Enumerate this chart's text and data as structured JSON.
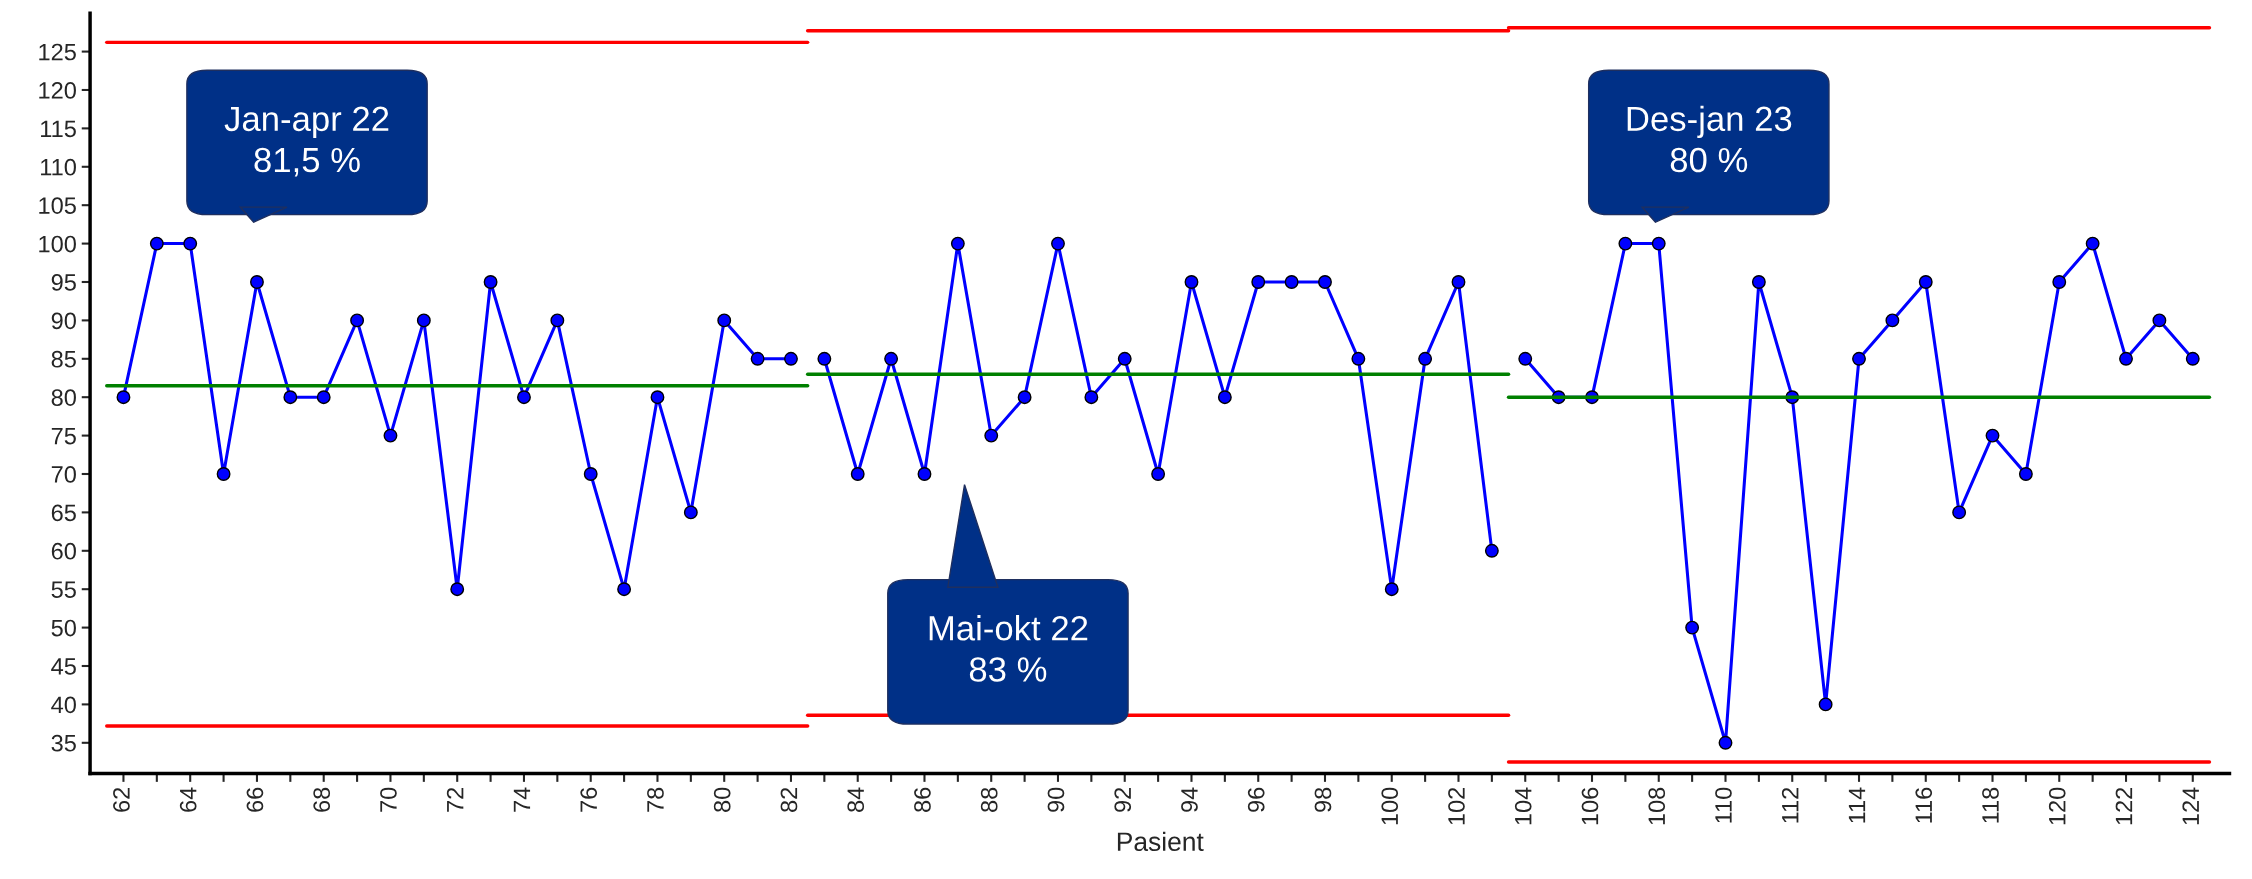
{
  "chart_data": {
    "type": "line",
    "xlabel": "Pasient",
    "marker": "circle",
    "line_style": "solid",
    "grid": false,
    "legend": false,
    "xlim": [
      61,
      125.1
    ],
    "ylim": [
      31,
      130
    ],
    "xticks": [
      62,
      {
        "value": 63,
        "label": null
      },
      64,
      {
        "value": 65,
        "label": null
      },
      66,
      {
        "value": 67,
        "label": null
      },
      68,
      {
        "value": 69,
        "label": null
      },
      70,
      {
        "value": 71,
        "label": null
      },
      72,
      {
        "value": 73,
        "label": null
      },
      74,
      {
        "value": 75,
        "label": null
      },
      76,
      {
        "value": 77,
        "label": null
      },
      78,
      {
        "value": 79,
        "label": null
      },
      80,
      {
        "value": 81,
        "label": null
      },
      82,
      {
        "value": 83,
        "label": null
      },
      84,
      {
        "value": 85,
        "label": null
      },
      86,
      {
        "value": 87,
        "label": null
      },
      88,
      {
        "value": 89,
        "label": null
      },
      90,
      {
        "value": 91,
        "label": null
      },
      92,
      {
        "value": 93,
        "label": null
      },
      94,
      {
        "value": 95,
        "label": null
      },
      96,
      {
        "value": 97,
        "label": null
      },
      98,
      {
        "value": 99,
        "label": null
      },
      100,
      {
        "value": 101,
        "label": null
      },
      102,
      {
        "value": 103,
        "label": null
      },
      104,
      {
        "value": 105,
        "label": null
      },
      106,
      {
        "value": 107,
        "label": null
      },
      108,
      {
        "value": 109,
        "label": null
      },
      110,
      {
        "value": 111,
        "label": null
      },
      112,
      {
        "value": 113,
        "label": null
      },
      114,
      {
        "value": 115,
        "label": null
      },
      116,
      {
        "value": 117,
        "label": null
      },
      118,
      {
        "value": 119,
        "label": null
      },
      120,
      {
        "value": 121,
        "label": null
      },
      122,
      {
        "value": 123,
        "label": null
      },
      124
    ],
    "yticks": [
      35,
      40,
      45,
      50,
      55,
      60,
      65,
      70,
      75,
      80,
      85,
      90,
      95,
      100,
      105,
      110,
      115,
      120,
      125
    ],
    "series": [
      {
        "color": "#0000ff",
        "x": [
          62,
          63,
          64,
          65,
          66,
          67,
          68,
          69,
          70,
          71,
          72,
          73,
          74,
          75,
          76,
          77,
          78,
          79,
          80,
          81,
          82
        ],
        "values": [
          80,
          100,
          100,
          70,
          95,
          80,
          80,
          90,
          75,
          90,
          55,
          95,
          80,
          90,
          70,
          55,
          80,
          65,
          90,
          85,
          85
        ]
      },
      {
        "color": "#0000ff",
        "x": [
          83,
          84,
          85,
          86,
          87,
          88,
          89,
          90,
          91,
          92,
          93,
          94,
          95,
          96,
          97,
          98,
          99,
          100,
          101,
          102,
          103
        ],
        "values": [
          85,
          70,
          85,
          70,
          100,
          75,
          80,
          100,
          80,
          85,
          70,
          95,
          80,
          95,
          95,
          95,
          85,
          55,
          85,
          95,
          60
        ]
      },
      {
        "color": "#0000ff",
        "x": [
          104,
          105,
          106,
          107,
          108,
          109,
          110,
          111,
          112,
          113,
          114,
          115,
          116,
          117,
          118,
          119,
          120,
          121,
          122,
          123,
          124
        ],
        "values": [
          85,
          80,
          80,
          100,
          100,
          50,
          35,
          95,
          80,
          40,
          85,
          90,
          95,
          65,
          75,
          70,
          95,
          100,
          85,
          90,
          85
        ]
      },
      {
        "type": "line",
        "color": "#ff0000",
        "marker": "none",
        "x": [
          61.5,
          82.5
        ],
        "values": [
          126.2,
          126.2
        ]
      },
      {
        "type": "line",
        "color": "#008000",
        "marker": "none",
        "x": [
          61.5,
          82.5
        ],
        "values": [
          81.5,
          81.5
        ]
      },
      {
        "type": "line",
        "color": "#ff0000",
        "marker": "none",
        "x": [
          61.5,
          82.5
        ],
        "values": [
          37.2,
          37.2
        ]
      },
      {
        "type": "line",
        "color": "#ff0000",
        "marker": "none",
        "x": [
          82.5,
          103.5
        ],
        "values": [
          127.7,
          127.7
        ]
      },
      {
        "type": "line",
        "color": "#008000",
        "marker": "none",
        "x": [
          82.5,
          103.5
        ],
        "values": [
          83,
          83
        ]
      },
      {
        "type": "line",
        "color": "#ff0000",
        "marker": "none",
        "x": [
          82.5,
          103.5
        ],
        "values": [
          38.6,
          38.6
        ]
      },
      {
        "type": "line",
        "color": "#ff0000",
        "marker": "none",
        "x": [
          103.5,
          124.5
        ],
        "values": [
          128.1,
          128.1
        ]
      },
      {
        "type": "line",
        "color": "#008000",
        "marker": "none",
        "x": [
          103.5,
          124.5
        ],
        "values": [
          80,
          80
        ]
      },
      {
        "type": "line",
        "color": "#ff0000",
        "marker": "none",
        "x": [
          103.5,
          124.5
        ],
        "values": [
          32.5,
          32.5
        ]
      }
    ],
    "annotations": [
      "Jan-apr 22\n81,5 %",
      "Mai-okt 22\n83 %",
      "Des-jan 23\n80 %"
    ]
  }
}
